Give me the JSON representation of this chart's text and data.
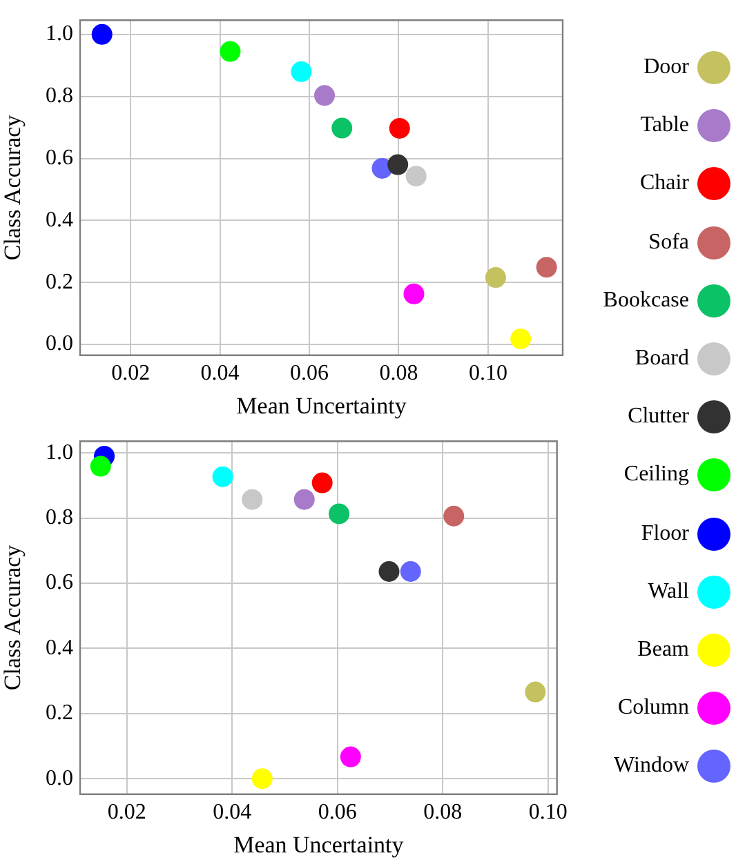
{
  "chart_data": [
    {
      "type": "scatter",
      "xlabel": "Mean Uncertainty",
      "ylabel": "Class Accuracy",
      "xlim": [
        0.0087,
        0.1167
      ],
      "ylim": [
        -0.035,
        1.046
      ],
      "xticks": [
        {
          "value": 0.02,
          "label": "0.02"
        },
        {
          "value": 0.04,
          "label": "0.04"
        },
        {
          "value": 0.06,
          "label": "0.06"
        },
        {
          "value": 0.08,
          "label": "0.08"
        },
        {
          "value": 0.1,
          "label": "0.10"
        }
      ],
      "yticks": [
        {
          "value": 0,
          "label": "0.0"
        },
        {
          "value": 0.2,
          "label": "0.2"
        },
        {
          "value": 0.4,
          "label": "0.4"
        },
        {
          "value": 0.6,
          "label": "0.6"
        },
        {
          "value": 0.8,
          "label": "0.8"
        },
        {
          "value": 1,
          "label": "1.0"
        }
      ],
      "grid": true,
      "legend": "right",
      "marker": "circle",
      "series": [
        {
          "name": "Door",
          "color": "#c4c15f",
          "x": [
            0.1017
          ],
          "values": [
            0.216
          ]
        },
        {
          "name": "Table",
          "color": "#a77bca",
          "x": [
            0.0634
          ],
          "values": [
            0.803
          ]
        },
        {
          "name": "Chair",
          "color": "#ff0000",
          "x": [
            0.0802
          ],
          "values": [
            0.697
          ]
        },
        {
          "name": "Sofa",
          "color": "#c76464",
          "x": [
            0.1131
          ],
          "values": [
            0.249
          ]
        },
        {
          "name": "Bookcase",
          "color": "#0cc266",
          "x": [
            0.0673
          ],
          "values": [
            0.698
          ]
        },
        {
          "name": "Board",
          "color": "#c8c8c8",
          "x": [
            0.0839
          ],
          "values": [
            0.543
          ]
        },
        {
          "name": "Clutter",
          "color": "#323232",
          "x": [
            0.0798
          ],
          "values": [
            0.58
          ]
        },
        {
          "name": "Ceiling",
          "color": "#00ff00",
          "x": [
            0.0423
          ],
          "values": [
            0.945
          ]
        },
        {
          "name": "Floor",
          "color": "#0000ff",
          "x": [
            0.0136
          ],
          "values": [
            1.0
          ]
        },
        {
          "name": "Wall",
          "color": "#00ffff",
          "x": [
            0.0582
          ],
          "values": [
            0.88
          ]
        },
        {
          "name": "Beam",
          "color": "#ffff00",
          "x": [
            0.1073
          ],
          "values": [
            0.018
          ]
        },
        {
          "name": "Column",
          "color": "#ff00ff",
          "x": [
            0.0834
          ],
          "values": [
            0.163
          ]
        },
        {
          "name": "Window",
          "color": "#6464ff",
          "x": [
            0.0763
          ],
          "values": [
            0.568
          ]
        }
      ]
    },
    {
      "type": "scatter",
      "xlabel": "Mean Uncertainty",
      "ylabel": "Class Accuracy",
      "xlim": [
        0.0111,
        0.1017
      ],
      "ylim": [
        -0.048,
        1.036
      ],
      "xticks": [
        {
          "value": 0.02,
          "label": "0.02"
        },
        {
          "value": 0.04,
          "label": "0.04"
        },
        {
          "value": 0.06,
          "label": "0.06"
        },
        {
          "value": 0.08,
          "label": "0.08"
        },
        {
          "value": 0.1,
          "label": "0.10"
        }
      ],
      "yticks": [
        {
          "value": 0,
          "label": "0.0"
        },
        {
          "value": 0.2,
          "label": "0.2"
        },
        {
          "value": 0.4,
          "label": "0.4"
        },
        {
          "value": 0.6,
          "label": "0.6"
        },
        {
          "value": 0.8,
          "label": "0.8"
        },
        {
          "value": 1,
          "label": "1.0"
        }
      ],
      "grid": true,
      "marker": "circle",
      "series": [
        {
          "color": "#c4c15f",
          "x": [
            0.0976
          ],
          "values": [
            0.266
          ]
        },
        {
          "color": "#a77bca",
          "x": [
            0.0537
          ],
          "values": [
            0.857
          ]
        },
        {
          "color": "#ff0000",
          "x": [
            0.0571
          ],
          "values": [
            0.908
          ]
        },
        {
          "color": "#c76464",
          "x": [
            0.0821
          ],
          "values": [
            0.806
          ]
        },
        {
          "color": "#0cc266",
          "x": [
            0.0603
          ],
          "values": [
            0.813
          ]
        },
        {
          "color": "#c8c8c8",
          "x": [
            0.0438
          ],
          "values": [
            0.857
          ]
        },
        {
          "color": "#323232",
          "x": [
            0.0698
          ],
          "values": [
            0.636
          ]
        },
        {
          "color": "#00ff00",
          "x": [
            0.015
          ],
          "values": [
            0.959
          ]
        },
        {
          "color": "#0000ff",
          "x": [
            0.0157
          ],
          "values": [
            0.99
          ]
        },
        {
          "color": "#00ffff",
          "x": [
            0.0382
          ],
          "values": [
            0.927
          ]
        },
        {
          "color": "#ffff00",
          "x": [
            0.0457
          ],
          "values": [
            0.0
          ]
        },
        {
          "color": "#ff00ff",
          "x": [
            0.0625
          ],
          "values": [
            0.067
          ]
        },
        {
          "color": "#6464ff",
          "x": [
            0.0739
          ],
          "values": [
            0.636
          ]
        }
      ]
    }
  ]
}
